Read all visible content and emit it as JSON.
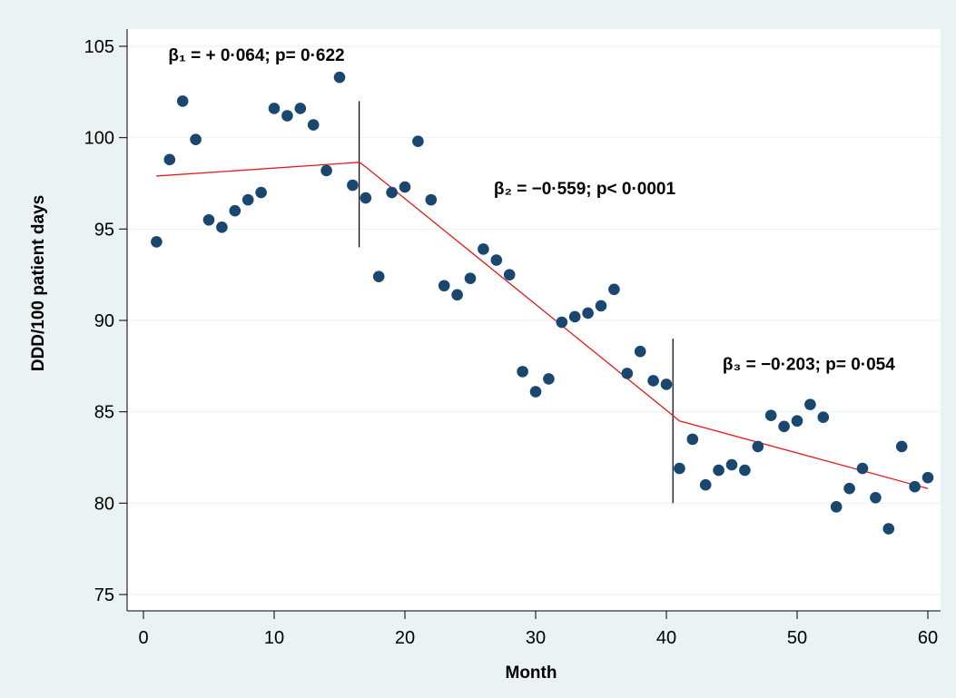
{
  "chart_data": {
    "type": "scatter",
    "title": "",
    "xlabel": "Month",
    "ylabel": "DDD/100 patient days",
    "xlim": [
      0,
      60
    ],
    "ylim": [
      75,
      105
    ],
    "xticks": [
      0,
      10,
      20,
      30,
      40,
      50,
      60
    ],
    "yticks": [
      75,
      80,
      85,
      90,
      95,
      100,
      105
    ],
    "grid": "horizontal",
    "legend": "none",
    "colors": {
      "background": "#eaf2f3",
      "plot_background": "#ffffff",
      "points": "#1a476f",
      "fit_line": "#e41a1c",
      "grid": "#eaf2f3",
      "breakpoint_lines": "#000000"
    },
    "points": {
      "x": [
        1,
        2,
        3,
        4,
        5,
        6,
        7,
        8,
        9,
        10,
        11,
        12,
        13,
        14,
        15,
        16,
        17,
        18,
        19,
        20,
        21,
        22,
        23,
        24,
        25,
        26,
        27,
        28,
        29,
        30,
        31,
        32,
        33,
        34,
        35,
        36,
        37,
        38,
        39,
        40,
        41,
        42,
        43,
        44,
        45,
        46,
        47,
        48,
        49,
        50,
        51,
        52,
        53,
        54,
        55,
        56,
        57,
        58,
        59,
        60
      ],
      "y": [
        94.3,
        98.8,
        102.0,
        99.9,
        95.5,
        95.1,
        96.0,
        96.6,
        97.0,
        101.6,
        101.2,
        101.6,
        100.7,
        98.2,
        103.3,
        97.4,
        96.7,
        92.4,
        97.0,
        97.3,
        99.8,
        96.6,
        91.9,
        91.4,
        92.3,
        93.9,
        93.3,
        92.5,
        87.2,
        86.1,
        86.8,
        89.9,
        90.2,
        90.4,
        90.8,
        91.7,
        87.1,
        88.3,
        86.7,
        86.5,
        81.9,
        83.5,
        81.0,
        81.8,
        82.1,
        81.8,
        83.1,
        84.8,
        84.2,
        84.5,
        85.4,
        84.7,
        79.8,
        80.8,
        81.9,
        80.3,
        78.6,
        83.1,
        80.9,
        81.4
      ]
    },
    "fit_line": {
      "x": [
        1,
        16.5,
        17,
        40.5,
        41,
        60
      ],
      "y": [
        97.9,
        98.65,
        98.4,
        84.8,
        84.5,
        80.8
      ]
    },
    "breakpoints": [
      {
        "x": 16.5,
        "y_from": 94,
        "y_to": 102
      },
      {
        "x": 40.5,
        "y_from": 80,
        "y_to": 89
      }
    ],
    "annotations": [
      {
        "text": "β₁ = + 0·064; p= 0·622",
        "x": 1.9,
        "y": 104.2
      },
      {
        "text": "β₂ = −0·559; p< 0·0001",
        "x": 26.8,
        "y": 96.9
      },
      {
        "text": "β₃ = −0·203; p= 0·054",
        "x": 44.3,
        "y": 87.3
      }
    ]
  }
}
